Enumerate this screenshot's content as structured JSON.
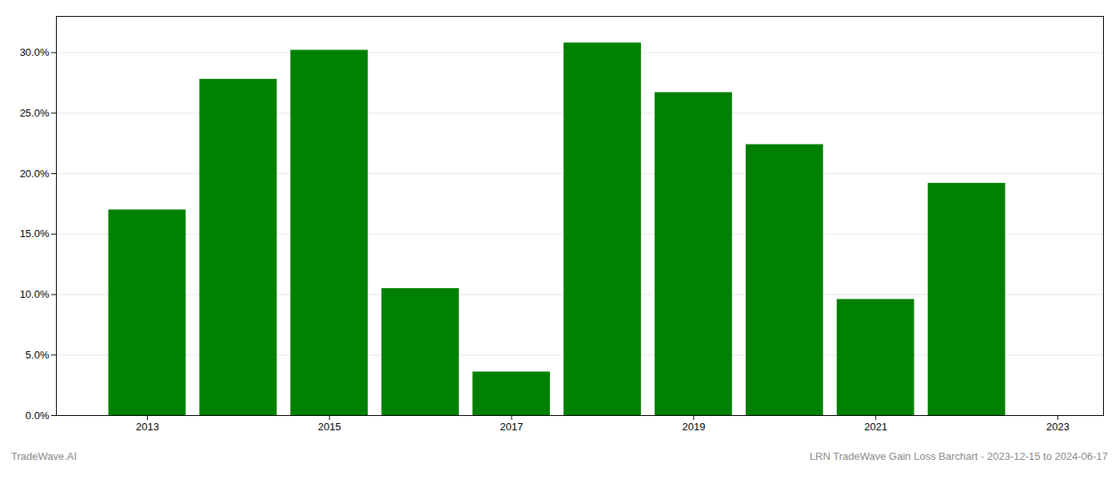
{
  "chart_data": {
    "type": "bar",
    "x": [
      2013,
      2014,
      2015,
      2016,
      2017,
      2018,
      2019,
      2020,
      2021,
      2022
    ],
    "values": [
      0.17,
      0.278,
      0.302,
      0.105,
      0.036,
      0.308,
      0.267,
      0.224,
      0.096,
      0.192
    ],
    "color": "#008000",
    "xlim": [
      2012.0,
      2023.5
    ],
    "xticks": [
      2013,
      2015,
      2017,
      2019,
      2021,
      2023
    ],
    "ylim": [
      0.0,
      0.33
    ],
    "yticks": [
      {
        "value": 0.0,
        "label": "0.0%"
      },
      {
        "value": 0.05,
        "label": "5.0%"
      },
      {
        "value": 0.1,
        "label": "10.0%"
      },
      {
        "value": 0.15,
        "label": "15.0%"
      },
      {
        "value": 0.2,
        "label": "20.0%"
      },
      {
        "value": 0.25,
        "label": "25.0%"
      },
      {
        "value": 0.3,
        "label": "30.0%"
      }
    ],
    "grid": true,
    "annotations": [
      "TradeWave.AI",
      "LRN TradeWave Gain Loss Barchart - 2023-12-15 to 2024-06-17"
    ]
  }
}
